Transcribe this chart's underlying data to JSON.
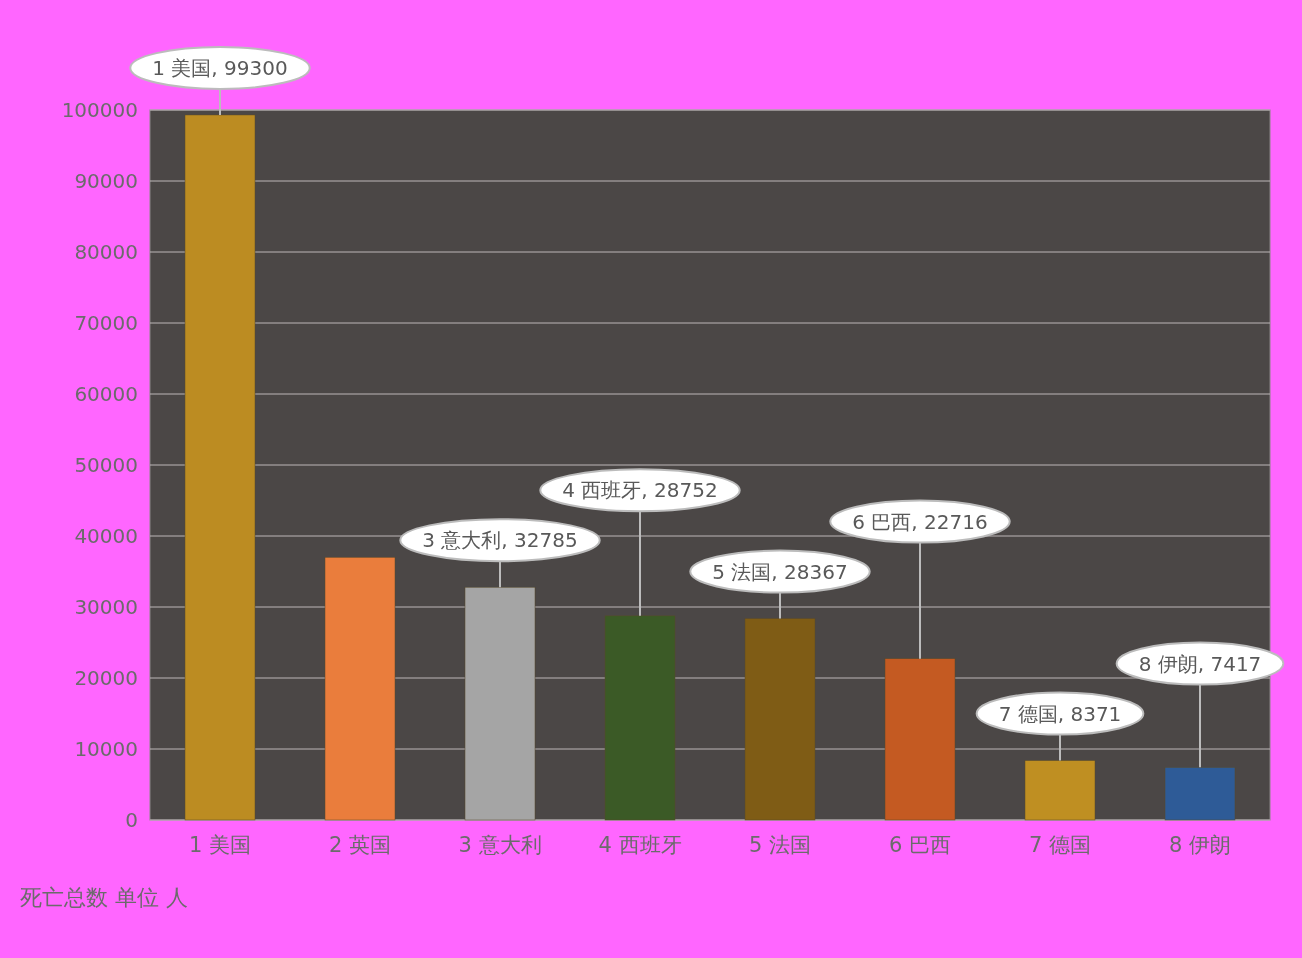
{
  "chart_data": {
    "type": "bar",
    "categories": [
      "1 美国",
      "2 英国",
      "3 意大利",
      "4 西班牙",
      "5 法国",
      "6 巴西",
      "7 德国",
      "8 伊朗"
    ],
    "values": [
      99300,
      37000,
      32785,
      28752,
      28367,
      22716,
      8371,
      7417
    ],
    "colors": [
      "#bc8c22",
      "#ea7d3c",
      "#a5a5a5",
      "#3b5a26",
      "#7f5c15",
      "#c45a22",
      "#bf8f22",
      "#2e5b97"
    ],
    "value_labels": [
      "1 美国, 99300",
      null,
      "3 意大利, 32785",
      "4 西班牙, 28752",
      "5 法国, 28367",
      "6 巴西, 22716",
      "7 德国, 8371",
      "8 伊朗, 7417"
    ],
    "ylabel": "死亡总数 单位 人",
    "ylim": [
      0,
      100000
    ],
    "yticks": [
      0,
      10000,
      20000,
      30000,
      40000,
      50000,
      60000,
      70000,
      80000,
      90000,
      100000
    ],
    "grid": "y"
  }
}
